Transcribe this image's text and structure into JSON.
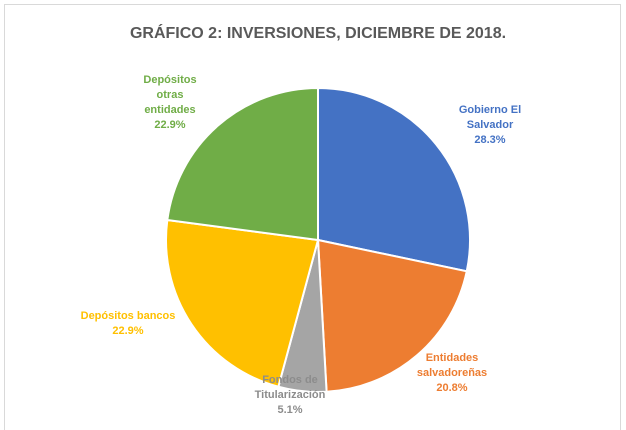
{
  "chart_data": {
    "type": "pie",
    "title": "GRÁFICO 2: INVERSIONES, DICIEMBRE DE 2018.",
    "categories": [
      "Gobierno El Salvador",
      "Entidades salvadoreñas",
      "Fondos de Titularización",
      "Depósitos bancos",
      "Depósitos otras entidades"
    ],
    "values": [
      28.3,
      20.8,
      5.1,
      22.9,
      22.9
    ],
    "value_labels": [
      "28.3%",
      "20.8%",
      "5.1%",
      "22.9%",
      "22.9%"
    ],
    "colors": [
      "#4472c4",
      "#ed7d31",
      "#a5a5a5",
      "#ffc000",
      "#70ad47"
    ]
  }
}
